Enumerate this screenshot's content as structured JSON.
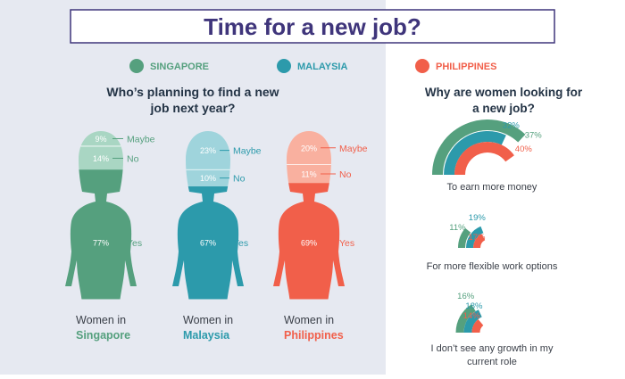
{
  "title": "Time for a new job?",
  "colors": {
    "left_bg": "#e6e9f1",
    "title_border": "#3f357b",
    "title_text": "#3f357b",
    "heading_text": "#243446",
    "label_text": "#3a3f48",
    "singapore": "#55a07e",
    "singapore_light": "#a9d6c3",
    "malaysia": "#2c9aab",
    "malaysia_light": "#9fd4dc",
    "philippines": "#f15f4a",
    "philippines_light": "#f9b09f"
  },
  "legend": [
    {
      "key": "singapore",
      "label": "SINGAPORE"
    },
    {
      "key": "malaysia",
      "label": "MALAYSIA"
    },
    {
      "key": "philippines",
      "label": "PHILIPPINES"
    }
  ],
  "chart_data": [
    {
      "type": "bar",
      "title": "Who’s planning to find a new job next year?",
      "title_lines": [
        "Who’s planning to find a new",
        "job next year?"
      ],
      "categories": [
        "Maybe",
        "No",
        "Yes"
      ],
      "series": [
        {
          "key": "singapore",
          "name": "SINGAPORE",
          "values": [
            9,
            14,
            77
          ],
          "value_labels": [
            "9%",
            "14%",
            "77%"
          ],
          "caption": [
            "Women in",
            "Singapore"
          ]
        },
        {
          "key": "malaysia",
          "name": "MALAYSIA",
          "values": [
            23,
            10,
            67
          ],
          "value_labels": [
            "23%",
            "10%",
            "67%"
          ],
          "caption": [
            "Women in",
            "Malaysia"
          ]
        },
        {
          "key": "philippines",
          "name": "PHILIPPINES",
          "values": [
            20,
            11,
            69
          ],
          "value_labels": [
            "20%",
            "11%",
            "69%"
          ],
          "caption": [
            "Women in",
            "Philippines"
          ]
        }
      ]
    },
    {
      "type": "pie",
      "title": "Why are women looking for a new job?",
      "title_lines": [
        "Why are women looking for",
        "a new job?"
      ],
      "categories": [
        "To earn more money",
        "For more flexible work options",
        "I don’t see any growth in my current role"
      ],
      "category_lines": [
        [
          "To earn more money"
        ],
        [
          "For more flexible work options"
        ],
        [
          "I don’t see any growth in my",
          "current role"
        ]
      ],
      "series": [
        {
          "key": "singapore",
          "name": "SINGAPORE",
          "values": [
            37,
            11,
            16
          ],
          "value_labels": [
            "37%",
            "11%",
            "16%"
          ]
        },
        {
          "key": "malaysia",
          "name": "MALAYSIA",
          "values": [
            32,
            19,
            18
          ],
          "value_labels": [
            "32%",
            "19%",
            "18%"
          ]
        },
        {
          "key": "philippines",
          "name": "PHILIPPINES",
          "values": [
            40,
            17,
            14
          ],
          "value_labels": [
            "40%",
            "17%",
            "14%"
          ]
        }
      ]
    }
  ]
}
